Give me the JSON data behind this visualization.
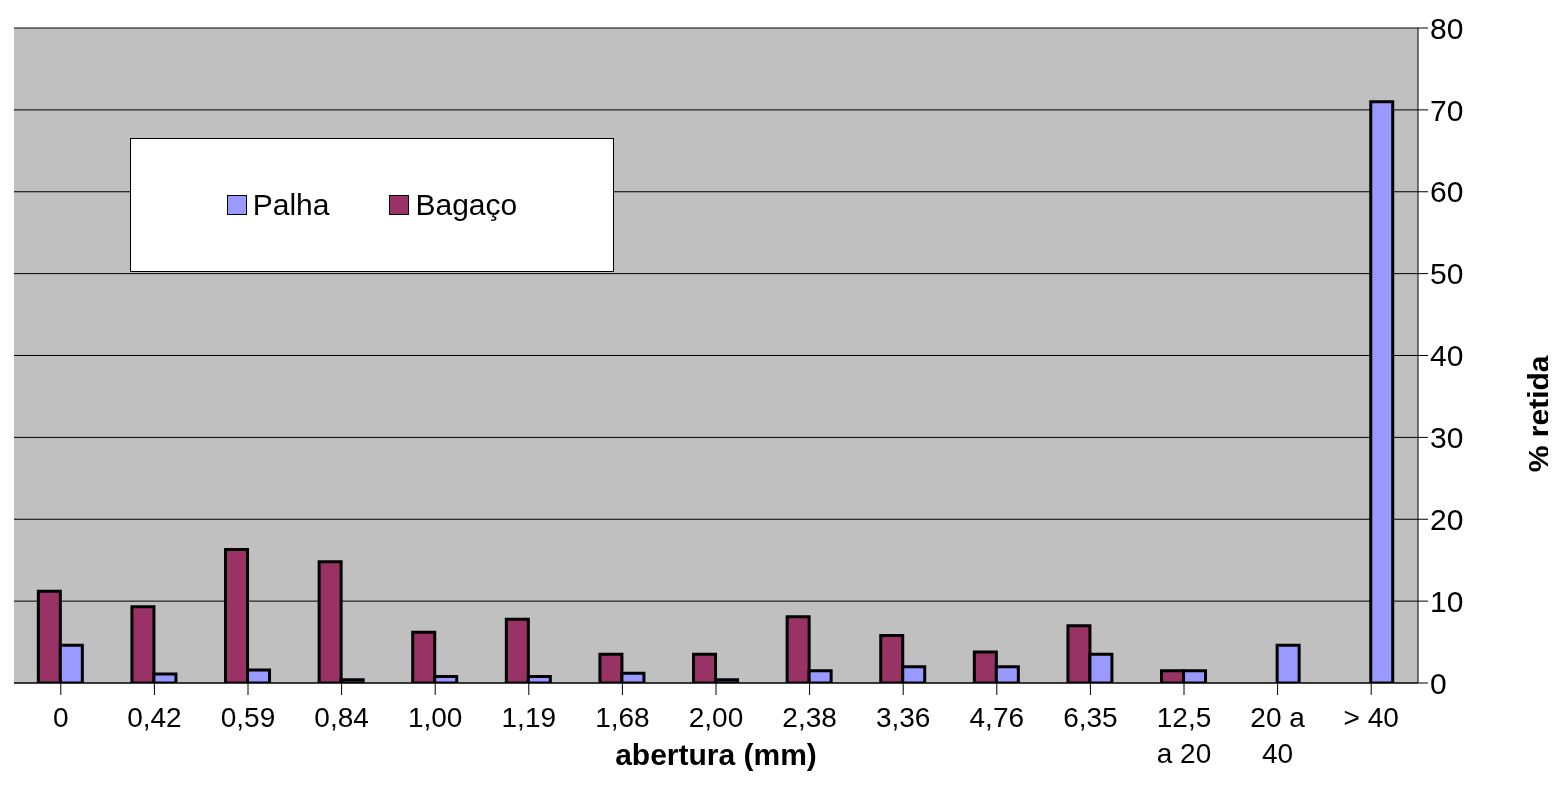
{
  "chart_data": {
    "type": "bar",
    "xlabel": "abertura (mm)",
    "ylabel": "% retida",
    "categories": [
      "0",
      "0,42",
      "0,59",
      "0,84",
      "1,00",
      "1,19",
      "1,68",
      "2,00",
      "2,38",
      "3,36",
      "4,76",
      "6,35",
      "12,5 a 20",
      "20 a 40",
      "> 40"
    ],
    "series": [
      {
        "name": "Bagaço",
        "color": "#993366",
        "values": [
          11.2,
          9.3,
          16.3,
          14.8,
          6.2,
          7.8,
          3.5,
          3.5,
          8.1,
          5.8,
          3.8,
          7.0,
          1.5,
          null,
          null
        ]
      },
      {
        "name": "Palha",
        "color": "#9999ff",
        "values": [
          4.6,
          1.1,
          1.6,
          0.4,
          0.8,
          0.8,
          1.2,
          0.4,
          1.5,
          2.0,
          2.0,
          3.5,
          1.5,
          4.6,
          71
        ]
      }
    ],
    "ylim": [
      0,
      80
    ],
    "yticks": [
      0,
      10,
      20,
      30,
      40,
      50,
      60,
      70,
      80
    ],
    "grid": "y",
    "legend": "top left"
  }
}
